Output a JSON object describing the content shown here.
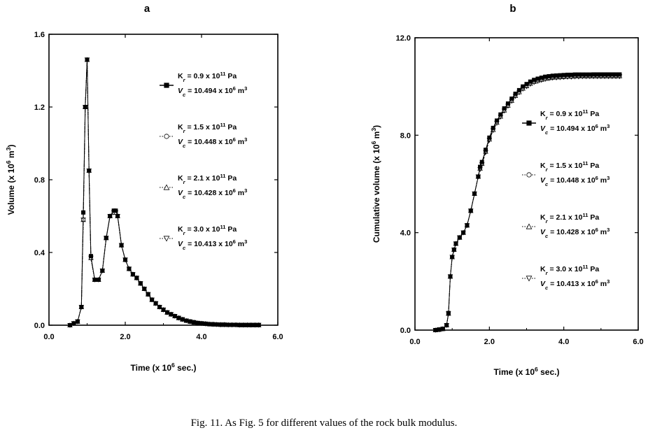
{
  "figure": {
    "caption": "Fig. 11. As Fig. 5 for different values of the rock bulk modulus."
  },
  "legend_entries": [
    {
      "k_prefix": "K",
      "k_sub": "r",
      "k_text": " = 0.9 x 10",
      "k_exp": "11",
      "k_unit": " Pa",
      "v_prefix": "V",
      "v_sub": "c",
      "v_text": " = 10.494 x 10",
      "v_exp": "6",
      "v_unit": " m",
      "v_unit_exp": "3",
      "marker": "square"
    },
    {
      "k_prefix": "K",
      "k_sub": "r",
      "k_text": " = 1.5 x 10",
      "k_exp": "11",
      "k_unit": " Pa",
      "v_prefix": "V",
      "v_sub": "c",
      "v_text": " = 10.448 x 10",
      "v_exp": "6",
      "v_unit": " m",
      "v_unit_exp": "3",
      "marker": "circle"
    },
    {
      "k_prefix": "K",
      "k_sub": "r",
      "k_text": " = 2.1 x 10",
      "k_exp": "11",
      "k_unit": " Pa",
      "v_prefix": "V",
      "v_sub": "c",
      "v_text": " = 10.428 x 10",
      "v_exp": "6",
      "v_unit": " m",
      "v_unit_exp": "3",
      "marker": "triangle-up"
    },
    {
      "k_prefix": "K",
      "k_sub": "r",
      "k_text": " = 3.0 x 10",
      "k_exp": "11",
      "k_unit": " Pa",
      "v_prefix": "V",
      "v_sub": "c",
      "v_text": " = 10.413 x 10",
      "v_exp": "6",
      "v_unit": " m",
      "v_unit_exp": "3",
      "marker": "triangle-down"
    }
  ],
  "chart_data": [
    {
      "panel": "a",
      "type": "line",
      "xlabel": "Time (x 10",
      "xlabel_exp": "6",
      "xlabel_tail": " sec.)",
      "ylabel": "Volume (x 10",
      "ylabel_exp": "6",
      "ylabel_mid": " m",
      "ylabel_exp2": "3",
      "ylabel_tail": ")",
      "xlim": [
        0,
        6
      ],
      "ylim": [
        0,
        1.6
      ],
      "xticks": [
        "0.0",
        "2.0",
        "4.0",
        "6.0"
      ],
      "xtick_values": [
        0,
        2,
        4,
        6
      ],
      "yticks": [
        "0.0",
        "0.4",
        "0.8",
        "1.2",
        "1.6"
      ],
      "ytick_values": [
        0,
        0.4,
        0.8,
        1.2,
        1.6
      ],
      "legend_position": "right",
      "grid": false,
      "x": [
        0.55,
        0.65,
        0.75,
        0.85,
        0.9,
        0.95,
        1.0,
        1.05,
        1.1,
        1.2,
        1.3,
        1.4,
        1.5,
        1.6,
        1.7,
        1.75,
        1.8,
        1.9,
        2.0,
        2.1,
        2.2,
        2.3,
        2.4,
        2.5,
        2.6,
        2.7,
        2.8,
        2.9,
        3.0,
        3.1,
        3.2,
        3.3,
        3.4,
        3.5,
        3.6,
        3.7,
        3.8,
        3.9,
        4.0,
        4.1,
        4.2,
        4.3,
        4.4,
        4.5,
        4.6,
        4.7,
        4.8,
        4.9,
        5.0,
        5.1,
        5.2,
        5.3,
        5.4,
        5.5
      ],
      "series": [
        {
          "y": [
            0.0,
            0.01,
            0.02,
            0.1,
            0.62,
            1.2,
            1.46,
            0.85,
            0.38,
            0.25,
            0.25,
            0.3,
            0.48,
            0.6,
            0.63,
            0.63,
            0.6,
            0.44,
            0.36,
            0.31,
            0.28,
            0.26,
            0.23,
            0.2,
            0.17,
            0.14,
            0.12,
            0.1,
            0.085,
            0.07,
            0.06,
            0.05,
            0.04,
            0.032,
            0.025,
            0.02,
            0.016,
            0.012,
            0.01,
            0.008,
            0.006,
            0.005,
            0.004,
            0.003,
            0.003,
            0.002,
            0.002,
            0.002,
            0.001,
            0.001,
            0.001,
            0.001,
            0.001,
            0.001
          ]
        },
        {
          "y": [
            0.0,
            0.01,
            0.02,
            0.1,
            0.58,
            1.2,
            1.46,
            0.85,
            0.37,
            0.25,
            0.25,
            0.3,
            0.48,
            0.6,
            0.62,
            0.62,
            0.6,
            0.44,
            0.36,
            0.31,
            0.28,
            0.26,
            0.23,
            0.2,
            0.17,
            0.14,
            0.12,
            0.1,
            0.085,
            0.07,
            0.06,
            0.05,
            0.04,
            0.032,
            0.025,
            0.02,
            0.016,
            0.012,
            0.01,
            0.008,
            0.006,
            0.005,
            0.004,
            0.003,
            0.003,
            0.002,
            0.002,
            0.002,
            0.001,
            0.001,
            0.001,
            0.001,
            0.001,
            0.001
          ]
        },
        {
          "y": [
            0.0,
            0.01,
            0.02,
            0.1,
            0.58,
            1.2,
            1.46,
            0.85,
            0.37,
            0.25,
            0.25,
            0.3,
            0.48,
            0.6,
            0.62,
            0.62,
            0.6,
            0.44,
            0.36,
            0.31,
            0.28,
            0.26,
            0.23,
            0.2,
            0.17,
            0.14,
            0.12,
            0.1,
            0.085,
            0.07,
            0.06,
            0.05,
            0.04,
            0.032,
            0.025,
            0.02,
            0.016,
            0.012,
            0.01,
            0.008,
            0.006,
            0.005,
            0.004,
            0.003,
            0.003,
            0.002,
            0.002,
            0.002,
            0.001,
            0.001,
            0.001,
            0.001,
            0.001,
            0.001
          ]
        },
        {
          "y": [
            0.0,
            0.01,
            0.02,
            0.1,
            0.58,
            1.2,
            1.46,
            0.85,
            0.37,
            0.25,
            0.25,
            0.3,
            0.48,
            0.6,
            0.62,
            0.62,
            0.6,
            0.44,
            0.36,
            0.31,
            0.28,
            0.26,
            0.23,
            0.2,
            0.17,
            0.14,
            0.12,
            0.1,
            0.085,
            0.07,
            0.06,
            0.05,
            0.04,
            0.032,
            0.025,
            0.02,
            0.016,
            0.012,
            0.01,
            0.008,
            0.006,
            0.005,
            0.004,
            0.003,
            0.003,
            0.002,
            0.002,
            0.002,
            0.001,
            0.001,
            0.001,
            0.001,
            0.001,
            0.001
          ]
        }
      ]
    },
    {
      "panel": "b",
      "type": "line",
      "xlabel": "Time (x 10",
      "xlabel_exp": "6",
      "xlabel_tail": " sec.)",
      "ylabel": "Cumulative volume (x 10",
      "ylabel_exp": "6",
      "ylabel_mid": " m",
      "ylabel_exp2": "3",
      "ylabel_tail": ")",
      "xlim": [
        0,
        6
      ],
      "ylim": [
        0,
        12
      ],
      "xticks": [
        "0.0",
        "2.0",
        "4.0",
        "6.0"
      ],
      "xtick_values": [
        0,
        2,
        4,
        6
      ],
      "yticks": [
        "0.0",
        "4.0",
        "8.0",
        "12.0"
      ],
      "ytick_values": [
        0,
        4,
        8,
        12
      ],
      "legend_position": "right",
      "grid": false,
      "x": [
        0.55,
        0.65,
        0.75,
        0.85,
        0.9,
        0.95,
        1.0,
        1.05,
        1.1,
        1.2,
        1.3,
        1.4,
        1.5,
        1.6,
        1.7,
        1.75,
        1.8,
        1.9,
        2.0,
        2.1,
        2.2,
        2.3,
        2.4,
        2.5,
        2.6,
        2.7,
        2.8,
        2.9,
        3.0,
        3.1,
        3.2,
        3.3,
        3.4,
        3.5,
        3.6,
        3.7,
        3.8,
        3.9,
        4.0,
        4.1,
        4.2,
        4.3,
        4.4,
        4.5,
        4.6,
        4.7,
        4.8,
        4.9,
        5.0,
        5.1,
        5.2,
        5.3,
        5.4,
        5.5
      ],
      "series": [
        {
          "y": [
            0.0,
            0.02,
            0.05,
            0.2,
            0.7,
            2.2,
            3.0,
            3.3,
            3.55,
            3.8,
            4.0,
            4.3,
            4.9,
            5.6,
            6.3,
            6.7,
            6.9,
            7.4,
            7.9,
            8.3,
            8.6,
            8.85,
            9.1,
            9.3,
            9.5,
            9.7,
            9.85,
            10.0,
            10.1,
            10.2,
            10.27,
            10.32,
            10.36,
            10.4,
            10.42,
            10.44,
            10.45,
            10.46,
            10.47,
            10.48,
            10.48,
            10.49,
            10.49,
            10.49,
            10.49,
            10.49,
            10.494,
            10.494,
            10.494,
            10.494,
            10.494,
            10.494,
            10.494,
            10.494
          ]
        },
        {
          "y": [
            0.0,
            0.02,
            0.05,
            0.2,
            0.68,
            2.2,
            3.0,
            3.3,
            3.55,
            3.8,
            4.0,
            4.3,
            4.9,
            5.6,
            6.3,
            6.65,
            6.85,
            7.35,
            7.85,
            8.25,
            8.55,
            8.8,
            9.05,
            9.25,
            9.45,
            9.65,
            9.8,
            9.95,
            10.05,
            10.15,
            10.22,
            10.27,
            10.31,
            10.35,
            10.37,
            10.39,
            10.4,
            10.41,
            10.42,
            10.43,
            10.43,
            10.44,
            10.44,
            10.44,
            10.445,
            10.445,
            10.448,
            10.448,
            10.448,
            10.448,
            10.448,
            10.448,
            10.448,
            10.448
          ]
        },
        {
          "y": [
            0.0,
            0.02,
            0.05,
            0.2,
            0.68,
            2.2,
            3.0,
            3.3,
            3.55,
            3.8,
            4.0,
            4.3,
            4.9,
            5.6,
            6.3,
            6.63,
            6.83,
            7.33,
            7.83,
            8.22,
            8.52,
            8.77,
            9.02,
            9.22,
            9.42,
            9.62,
            9.77,
            9.92,
            10.02,
            10.12,
            10.19,
            10.24,
            10.28,
            10.32,
            10.35,
            10.37,
            10.38,
            10.39,
            10.4,
            10.41,
            10.41,
            10.42,
            10.42,
            10.42,
            10.425,
            10.425,
            10.428,
            10.428,
            10.428,
            10.428,
            10.428,
            10.428,
            10.428,
            10.428
          ]
        },
        {
          "y": [
            0.0,
            0.02,
            0.05,
            0.2,
            0.68,
            2.2,
            3.0,
            3.3,
            3.55,
            3.8,
            4.0,
            4.3,
            4.9,
            5.6,
            6.3,
            6.6,
            6.8,
            7.3,
            7.8,
            8.2,
            8.5,
            8.75,
            9.0,
            9.2,
            9.4,
            9.6,
            9.75,
            9.9,
            10.0,
            10.1,
            10.17,
            10.22,
            10.26,
            10.3,
            10.33,
            10.35,
            10.36,
            10.37,
            10.38,
            10.39,
            10.39,
            10.4,
            10.4,
            10.41,
            10.41,
            10.41,
            10.413,
            10.413,
            10.413,
            10.413,
            10.413,
            10.413,
            10.413,
            10.413
          ]
        }
      ]
    }
  ]
}
